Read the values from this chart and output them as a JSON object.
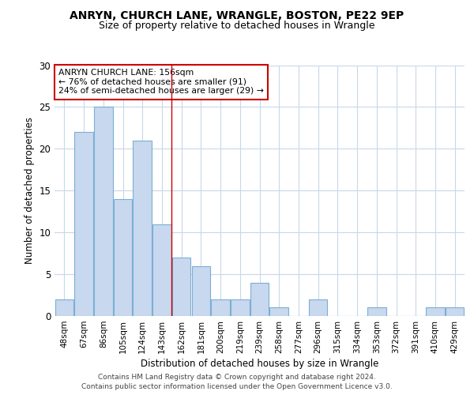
{
  "title1": "ANRYN, CHURCH LANE, WRANGLE, BOSTON, PE22 9EP",
  "title2": "Size of property relative to detached houses in Wrangle",
  "xlabel": "Distribution of detached houses by size in Wrangle",
  "ylabel": "Number of detached properties",
  "categories": [
    "48sqm",
    "67sqm",
    "86sqm",
    "105sqm",
    "124sqm",
    "143sqm",
    "162sqm",
    "181sqm",
    "200sqm",
    "219sqm",
    "239sqm",
    "258sqm",
    "277sqm",
    "296sqm",
    "315sqm",
    "334sqm",
    "353sqm",
    "372sqm",
    "391sqm",
    "410sqm",
    "429sqm"
  ],
  "values": [
    2,
    22,
    25,
    14,
    21,
    11,
    7,
    6,
    2,
    2,
    4,
    1,
    0,
    2,
    0,
    0,
    1,
    0,
    0,
    1,
    1
  ],
  "bar_color": "#c8d8ee",
  "bar_edge_color": "#7aafd4",
  "vline_x_index": 5.5,
  "vline_color": "#cc0000",
  "annotation_text": "ANRYN CHURCH LANE: 156sqm\n← 76% of detached houses are smaller (91)\n24% of semi-detached houses are larger (29) →",
  "annotation_box_color": "#ffffff",
  "annotation_box_edge": "#cc0000",
  "footer1": "Contains HM Land Registry data © Crown copyright and database right 2024.",
  "footer2": "Contains public sector information licensed under the Open Government Licence v3.0.",
  "ylim": [
    0,
    30
  ],
  "yticks": [
    0,
    5,
    10,
    15,
    20,
    25,
    30
  ],
  "background_color": "#ffffff",
  "plot_background": "#ffffff",
  "grid_color": "#c8d8e8"
}
